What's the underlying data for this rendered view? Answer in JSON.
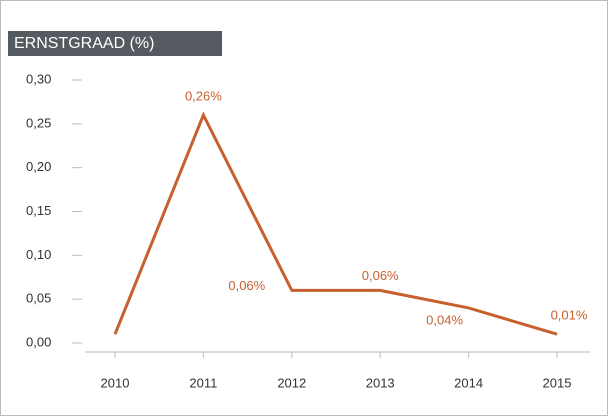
{
  "chart_data": {
    "type": "line",
    "title": "ERNSTGRAAD (%)",
    "categories": [
      "2010",
      "2011",
      "2012",
      "2013",
      "2014",
      "2015"
    ],
    "series": [
      {
        "name": null,
        "color": "#c8602e",
        "values": [
          0.01,
          0.26,
          0.06,
          0.06,
          0.04,
          0.01
        ],
        "value_labels": [
          null,
          "0,26%",
          "0,06%",
          "0,06%",
          "0,04%",
          "0,01%"
        ]
      }
    ],
    "ylim": [
      0,
      0.3
    ],
    "yticks": [
      {
        "value": 0,
        "label": "0,00"
      },
      {
        "value": 0.05,
        "label": "0,05"
      },
      {
        "value": 0.1,
        "label": "0,10"
      },
      {
        "value": 0.15,
        "label": "0,15"
      },
      {
        "value": 0.2,
        "label": "0,20"
      },
      {
        "value": 0.25,
        "label": "0,25"
      },
      {
        "value": 0.3,
        "label": "0,30"
      }
    ],
    "grid": false
  }
}
